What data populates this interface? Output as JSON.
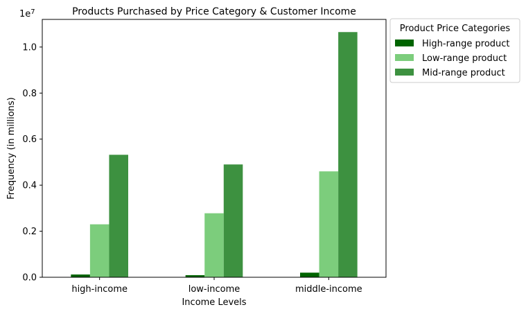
{
  "chart_data": {
    "type": "bar",
    "title": "Products Purchased by Price Category & Customer Income",
    "xlabel": "Income Levels",
    "ylabel": "Frequency (in millions)",
    "y_multiplier_label": "1e7",
    "categories": [
      "high-income",
      "low-income",
      "middle-income"
    ],
    "ylim": [
      0,
      11200000
    ],
    "yticks": [
      0,
      2000000,
      4000000,
      6000000,
      8000000,
      10000000
    ],
    "ytick_labels": [
      "0.0",
      "0.2",
      "0.4",
      "0.6",
      "0.8",
      "1.0"
    ],
    "grid": false,
    "legend": {
      "title": "Product Price Categories",
      "placement": "outside-top-right"
    },
    "series": [
      {
        "name": "High-range product",
        "color": "#006400",
        "values": [
          120000,
          90000,
          200000
        ]
      },
      {
        "name": "Low-range product",
        "color": "#7ccd7c",
        "values": [
          2300000,
          2780000,
          4600000
        ]
      },
      {
        "name": "Mid-range product",
        "color": "#3d9140",
        "values": [
          5320000,
          4900000,
          10650000
        ]
      }
    ]
  }
}
